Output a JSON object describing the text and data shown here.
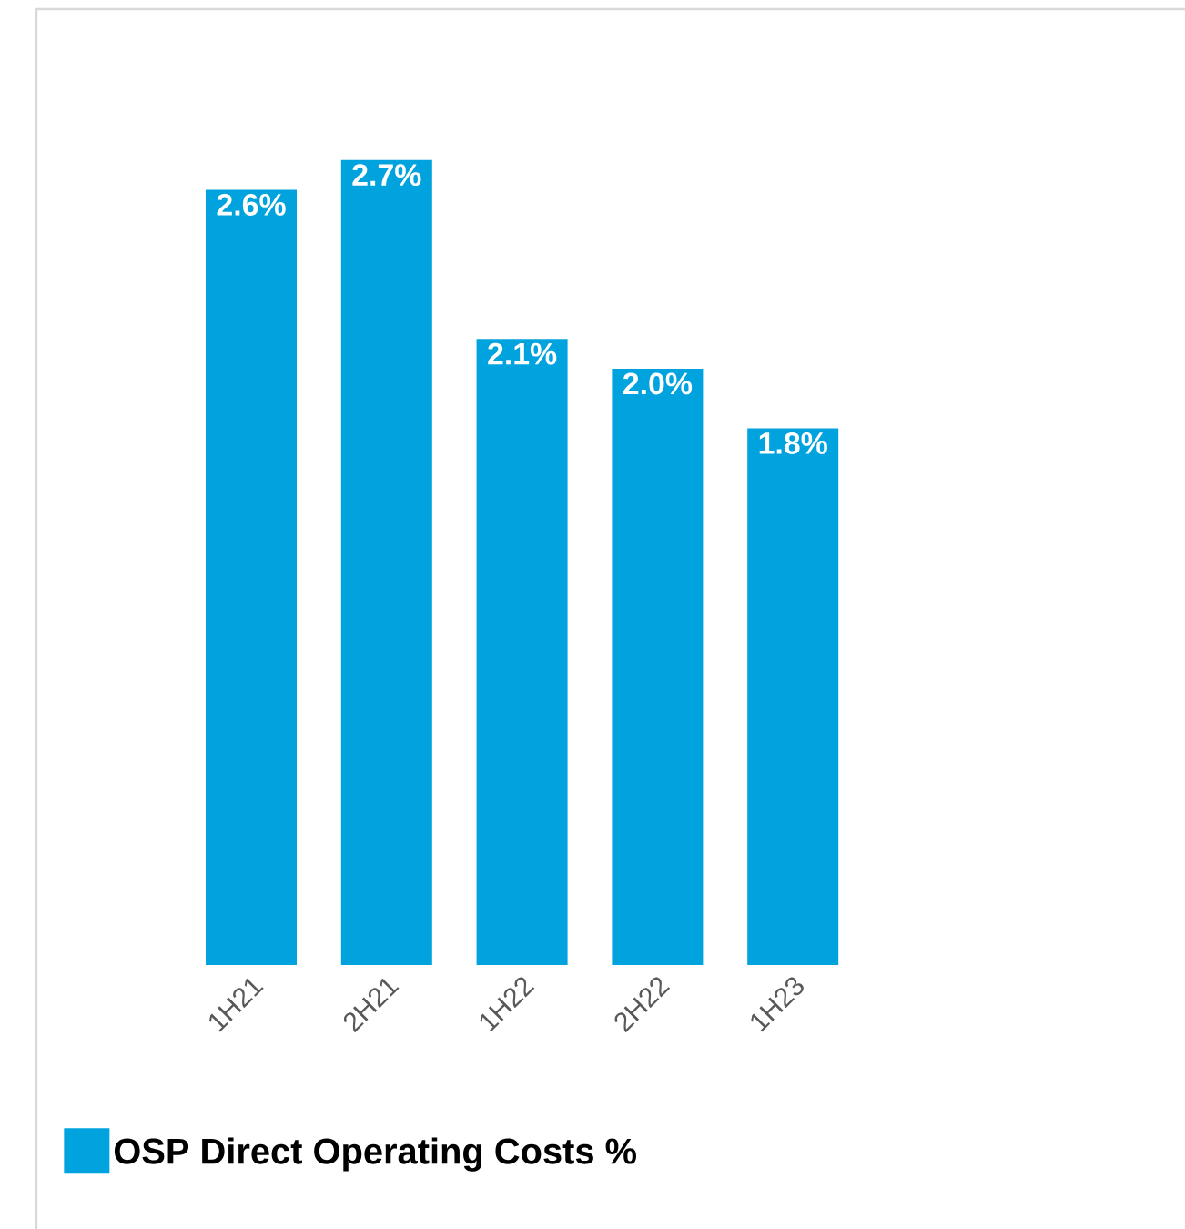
{
  "chart_data": {
    "type": "bar",
    "categories": [
      "1H21",
      "2H21",
      "1H22",
      "2H22",
      "1H23"
    ],
    "series": [
      {
        "name": "OSP Direct Operating Costs %",
        "color": "#00a3de",
        "values": [
          2.6,
          2.7,
          2.1,
          2.0,
          1.8
        ],
        "value_labels": [
          "2.6%",
          "2.7%",
          "2.1%",
          "2.0%",
          "1.8%"
        ]
      }
    ],
    "ylim": [
      0,
      3.2
    ],
    "tick_labels": "x",
    "legend": "bottom left"
  }
}
